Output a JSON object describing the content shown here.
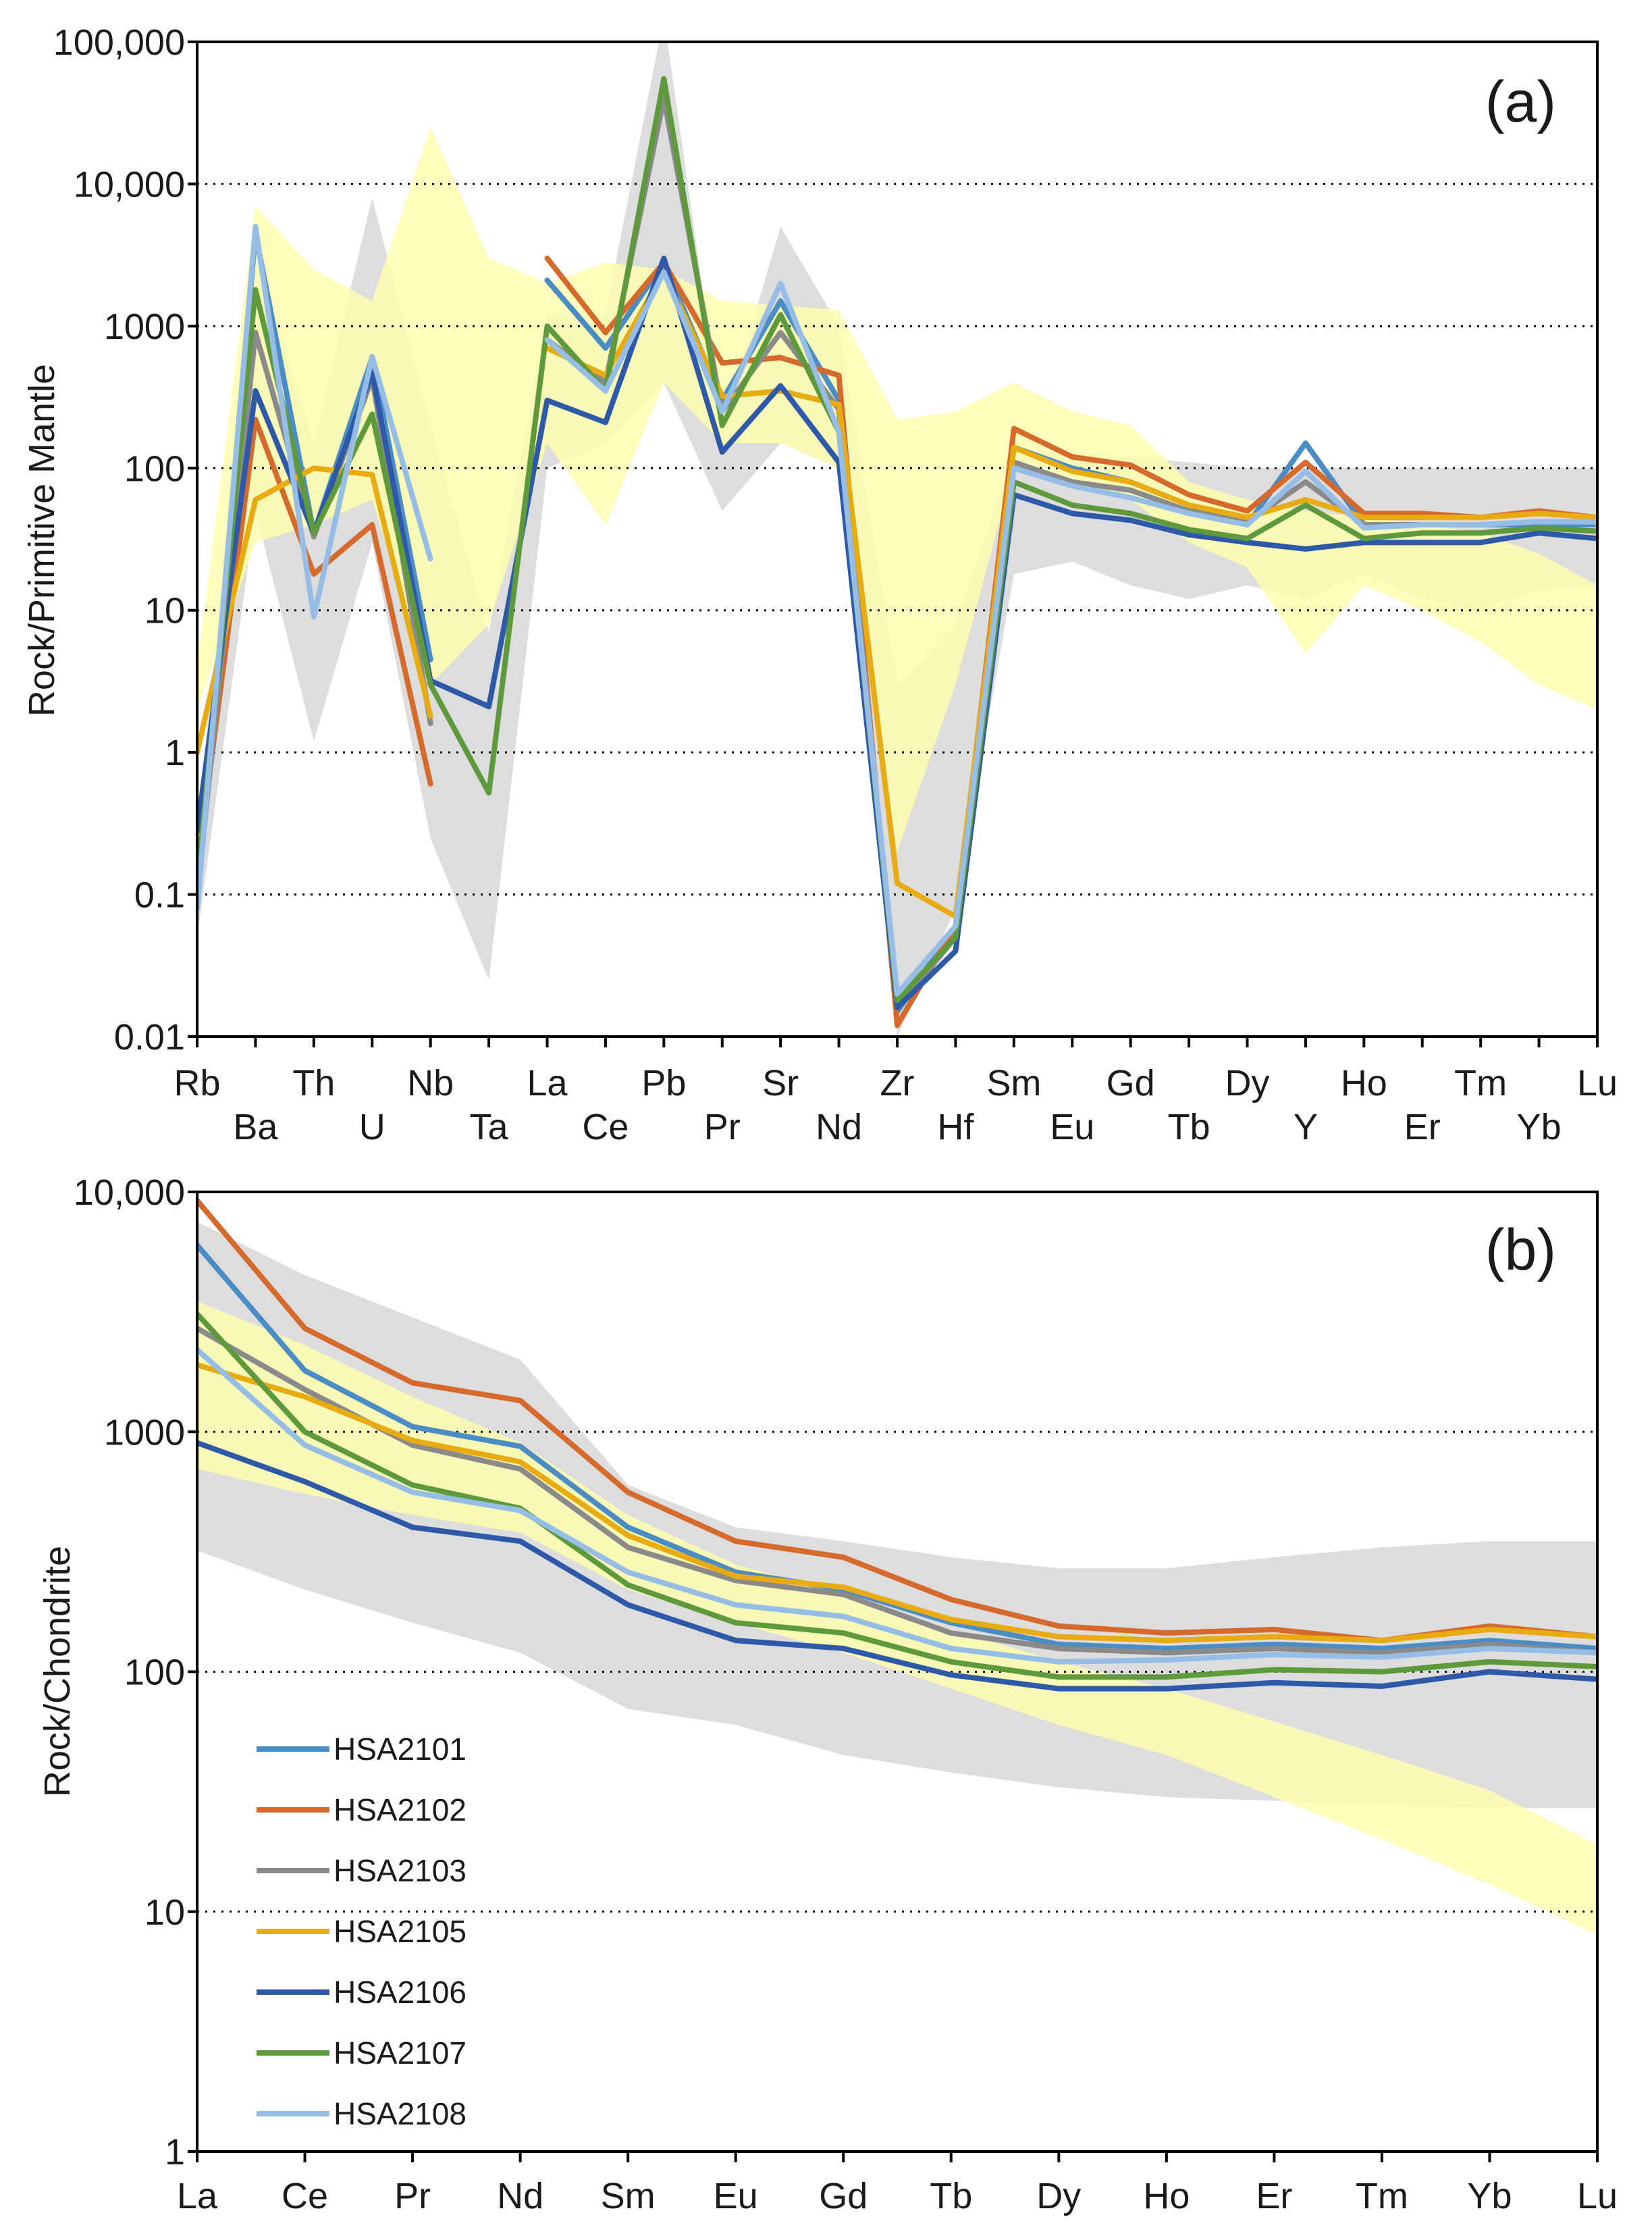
{
  "chart_data": [
    {
      "type": "line",
      "panel_label": "(a)",
      "ylabel": "Rock/Primitive Mantle",
      "yscale": "log",
      "ylim": [
        0.01,
        100000
      ],
      "y_ticks": [
        0.01,
        0.1,
        1,
        10,
        100,
        1000,
        10000,
        100000
      ],
      "y_tick_labels": [
        "0.01",
        "0.1",
        "1",
        "10",
        "100",
        "1000",
        "10,000",
        "100,000"
      ],
      "grid": "dotted horizontal",
      "categories": [
        "Rb",
        "Ba",
        "Th",
        "U",
        "Nb",
        "Ta",
        "La",
        "Ce",
        "Pb",
        "Pr",
        "Sr",
        "Nd",
        "Zr",
        "Hf",
        "Sm",
        "Eu",
        "Gd",
        "Tb",
        "Dy",
        "Y",
        "Ho",
        "Er",
        "Tm",
        "Yb",
        "Lu"
      ],
      "bands": [
        {
          "name": "gray field",
          "color": "#d9d9d9",
          "upper": [
            0.3,
            3000,
            150,
            8000,
            200,
            7,
            1200,
            1200,
            150000,
            200,
            5000,
            1000,
            3,
            8,
            130,
            130,
            120,
            110,
            100,
            100,
            100,
            100,
            100,
            100,
            100
          ],
          "lower": [
            0.05,
            50,
            1.2,
            30,
            0.25,
            0.025,
            100,
            150,
            400,
            50,
            150,
            100,
            0.01,
            0.08,
            18,
            22,
            15,
            12,
            15,
            12,
            18,
            12,
            10,
            14,
            15
          ]
        },
        {
          "name": "yellow field",
          "color": "#fdfdb0",
          "upper": [
            4,
            7000,
            2500,
            1500,
            25000,
            3000,
            2000,
            2800,
            2500,
            1500,
            1400,
            1300,
            220,
            250,
            400,
            250,
            200,
            80,
            60,
            50,
            45,
            40,
            35,
            25,
            15
          ],
          "lower": [
            2,
            30,
            40,
            60,
            3,
            8,
            150,
            40,
            400,
            150,
            150,
            100,
            0.2,
            3,
            100,
            80,
            60,
            30,
            20,
            5,
            15,
            10,
            6,
            3,
            2
          ]
        }
      ],
      "series": [
        {
          "name": "HSA2101",
          "color": "#4a8cc4",
          "values": [
            0.08,
            4500,
            35,
            600,
            4.5,
            null,
            2100,
            700,
            2800,
            300,
            1500,
            300,
            0.015,
            0.06,
            140,
            100,
            80,
            55,
            40,
            150,
            40,
            40,
            40,
            40,
            40
          ]
        },
        {
          "name": "HSA2102",
          "color": "#d66a2c",
          "values": [
            0.15,
            220,
            18,
            40,
            0.6,
            null,
            3000,
            900,
            2800,
            550,
            600,
            450,
            0.012,
            0.06,
            190,
            120,
            105,
            65,
            50,
            110,
            48,
            48,
            45,
            50,
            45
          ]
        },
        {
          "name": "HSA2103",
          "color": "#8a8a8a",
          "values": [
            0.1,
            900,
            33,
            430,
            1.6,
            null,
            800,
            400,
            40000,
            250,
            900,
            260,
            0.016,
            0.05,
            110,
            80,
            70,
            50,
            42,
            80,
            40,
            40,
            40,
            42,
            42
          ]
        },
        {
          "name": "HSA2105",
          "color": "#e8ac12",
          "values": [
            1.0,
            60,
            100,
            90,
            1.8,
            null,
            700,
            450,
            2400,
            320,
            350,
            280,
            0.12,
            0.07,
            140,
            95,
            80,
            55,
            45,
            60,
            45,
            45,
            45,
            48,
            45
          ]
        },
        {
          "name": "HSA2106",
          "color": "#2d59a8",
          "values": [
            0.28,
            350,
            35,
            470,
            3.2,
            2.1,
            300,
            210,
            3000,
            130,
            380,
            110,
            0.016,
            0.04,
            65,
            48,
            43,
            34,
            30,
            27,
            30,
            30,
            30,
            35,
            32
          ]
        },
        {
          "name": "HSA2107",
          "color": "#5e9a3c",
          "values": [
            0.12,
            1800,
            35,
            240,
            3.0,
            0.52,
            1000,
            350,
            55000,
            200,
            1200,
            180,
            0.018,
            0.05,
            80,
            55,
            48,
            37,
            32,
            55,
            32,
            35,
            35,
            38,
            36
          ]
        },
        {
          "name": "HSA2108",
          "color": "#95bde6",
          "values": [
            0.08,
            5000,
            9,
            610,
            23,
            null,
            800,
            350,
            2400,
            250,
            2000,
            180,
            0.02,
            0.06,
            100,
            75,
            62,
            48,
            40,
            95,
            38,
            40,
            40,
            42,
            42
          ]
        }
      ]
    },
    {
      "type": "line",
      "panel_label": "(b)",
      "ylabel": "Rock/Chondrite",
      "yscale": "log",
      "ylim": [
        1,
        10000
      ],
      "y_ticks": [
        1,
        10,
        100,
        1000,
        10000
      ],
      "y_tick_labels": [
        "1",
        "10",
        "100",
        "1000",
        "10,000"
      ],
      "grid": "dotted horizontal",
      "categories": [
        "La",
        "Ce",
        "Pr",
        "Nd",
        "Sm",
        "Eu",
        "Gd",
        "Tb",
        "Dy",
        "Ho",
        "Er",
        "Tm",
        "Yb",
        "Lu"
      ],
      "bands": [
        {
          "name": "gray field",
          "color": "#d9d9d9",
          "upper": [
            7500,
            4500,
            3000,
            2000,
            600,
            400,
            350,
            300,
            270,
            270,
            300,
            330,
            350,
            350
          ],
          "lower": [
            320,
            220,
            160,
            120,
            70,
            60,
            45,
            38,
            33,
            30,
            29,
            28,
            27,
            27
          ]
        },
        {
          "name": "yellow field",
          "color": "#fdfdb0",
          "upper": [
            3500,
            2300,
            1400,
            900,
            450,
            280,
            210,
            150,
            110,
            85,
            62,
            45,
            32,
            19
          ]
        },
        {
          "name": "yellow field lower",
          "color": "#fdfdb0",
          "lower": [
            700,
            550,
            450,
            380,
            220,
            160,
            120,
            85,
            60,
            45,
            30,
            20,
            13,
            8
          ]
        }
      ],
      "series": [
        {
          "name": "HSA2101",
          "color": "#4a8cc4",
          "values": [
            6000,
            1800,
            1050,
            870,
            400,
            260,
            220,
            160,
            130,
            125,
            130,
            125,
            135,
            125
          ]
        },
        {
          "name": "HSA2102",
          "color": "#d66a2c",
          "values": [
            9200,
            2700,
            1600,
            1350,
            560,
            350,
            300,
            200,
            155,
            145,
            150,
            135,
            155,
            140
          ]
        },
        {
          "name": "HSA2103",
          "color": "#8a8a8a",
          "values": [
            2700,
            1500,
            880,
            700,
            330,
            240,
            210,
            145,
            125,
            120,
            125,
            120,
            130,
            120
          ]
        },
        {
          "name": "HSA2105",
          "color": "#e8ac12",
          "values": [
            1900,
            1400,
            920,
            750,
            370,
            250,
            225,
            165,
            140,
            135,
            140,
            135,
            150,
            140
          ]
        },
        {
          "name": "HSA2106",
          "color": "#2d59a8",
          "values": [
            900,
            620,
            400,
            350,
            190,
            135,
            125,
            97,
            85,
            85,
            90,
            87,
            100,
            93
          ]
        },
        {
          "name": "HSA2107",
          "color": "#5e9a3c",
          "values": [
            3100,
            1000,
            600,
            480,
            230,
            160,
            145,
            110,
            95,
            95,
            102,
            100,
            110,
            105
          ]
        },
        {
          "name": "HSA2108",
          "color": "#95bde6",
          "values": [
            2200,
            880,
            560,
            470,
            260,
            190,
            170,
            125,
            110,
            112,
            118,
            115,
            125,
            120
          ]
        }
      ]
    }
  ]
}
